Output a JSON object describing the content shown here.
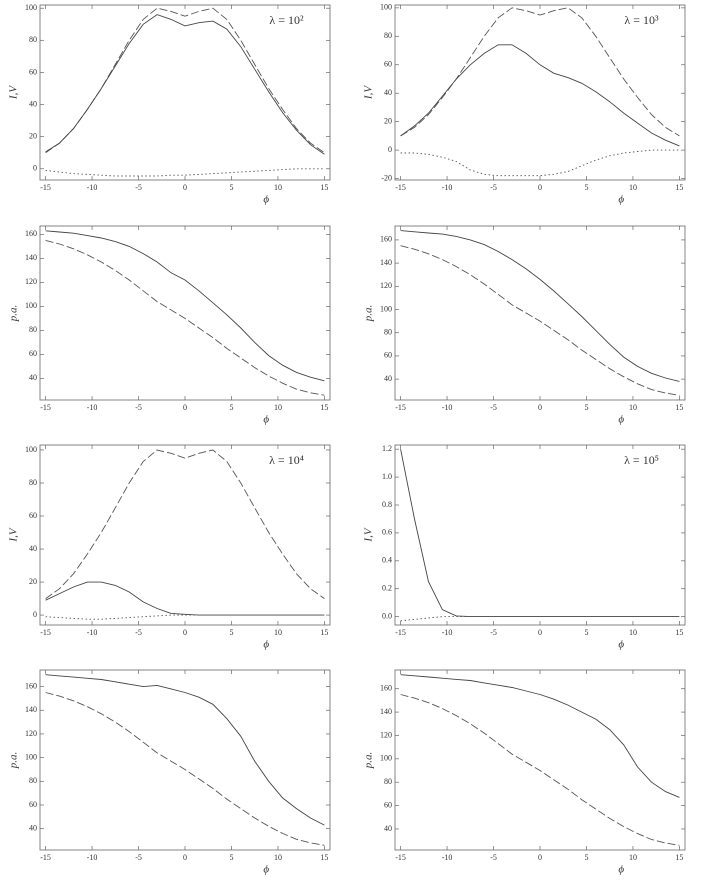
{
  "chart_data": [
    {
      "type": "line",
      "annotation": "λ = 10²",
      "xlabel": "ϕ",
      "ylabel": "I,V",
      "x": [
        -15,
        -13.5,
        -12,
        -10.5,
        -9,
        -7.5,
        -6,
        -4.5,
        -3,
        -1.5,
        0,
        1.5,
        3,
        4.5,
        6,
        7.5,
        9,
        10.5,
        12,
        13.5,
        15
      ],
      "xlim": [
        -15.6,
        15.6
      ],
      "xticks": [
        -15,
        -10,
        -5,
        0,
        5,
        10,
        15
      ],
      "ylim": [
        -7,
        102
      ],
      "yticks": [
        0,
        20,
        40,
        60,
        80,
        100
      ],
      "series": [
        {
          "style": "dashed",
          "color": "#555555",
          "values": [
            10,
            16,
            25,
            37,
            50,
            65,
            80,
            93,
            100,
            98,
            95,
            98,
            100,
            93,
            80,
            65,
            50,
            37,
            25,
            16,
            10
          ]
        },
        {
          "style": "solid",
          "color": "#444444",
          "values": [
            10.5,
            16,
            25,
            37,
            50,
            64,
            78,
            90,
            96,
            93,
            89,
            91,
            92,
            87,
            76,
            62,
            48,
            35,
            24,
            15,
            9
          ]
        },
        {
          "style": "dotted",
          "color": "#555555",
          "values": [
            -1,
            -2,
            -3,
            -3.5,
            -4,
            -4.5,
            -4.5,
            -4.5,
            -4.5,
            -4,
            -4,
            -3.5,
            -3,
            -2.5,
            -2,
            -1.5,
            -1,
            -0.5,
            0,
            0,
            0
          ]
        }
      ]
    },
    {
      "type": "line",
      "annotation": "λ = 10³",
      "xlabel": "ϕ",
      "ylabel": "I,V",
      "x": [
        -15,
        -13.5,
        -12,
        -10.5,
        -9,
        -7.5,
        -6,
        -4.5,
        -3,
        -1.5,
        0,
        1.5,
        3,
        4.5,
        6,
        7.5,
        9,
        10.5,
        12,
        13.5,
        15
      ],
      "xlim": [
        -15.6,
        15.6
      ],
      "xticks": [
        -15,
        -10,
        -5,
        0,
        5,
        10,
        15
      ],
      "ylim": [
        -21,
        102
      ],
      "yticks": [
        -20,
        0,
        20,
        40,
        60,
        80,
        100
      ],
      "series": [
        {
          "style": "dashed",
          "color": "#555555",
          "values": [
            10,
            16,
            25,
            37,
            50,
            65,
            80,
            93,
            100,
            98,
            95,
            98,
            100,
            93,
            80,
            65,
            50,
            37,
            25,
            16,
            10
          ]
        },
        {
          "style": "solid",
          "color": "#444444",
          "values": [
            10,
            17,
            26,
            38,
            50,
            60,
            68,
            74,
            74,
            68,
            60,
            54,
            51,
            47,
            41,
            34,
            26,
            19,
            12,
            7,
            3
          ]
        },
        {
          "style": "dotted",
          "color": "#555555",
          "values": [
            -2,
            -2,
            -3,
            -5,
            -8,
            -14,
            -17,
            -18,
            -18,
            -18,
            -18,
            -17,
            -15,
            -11,
            -7,
            -4,
            -2,
            -1,
            0,
            0,
            0
          ]
        }
      ]
    },
    {
      "type": "line",
      "xlabel": "ϕ",
      "ylabel": "p.a.",
      "x": [
        -15,
        -13.5,
        -12,
        -10.5,
        -9,
        -7.5,
        -6,
        -4.5,
        -3,
        -1.5,
        0,
        1.5,
        3,
        4.5,
        6,
        7.5,
        9,
        10.5,
        12,
        13.5,
        15
      ],
      "xlim": [
        -15.6,
        15.6
      ],
      "xticks": [
        -15,
        -10,
        -5,
        0,
        5,
        10,
        15
      ],
      "ylim": [
        22,
        167
      ],
      "yticks": [
        40,
        60,
        80,
        100,
        120,
        140,
        160
      ],
      "series": [
        {
          "style": "dashed",
          "color": "#555555",
          "values": [
            155,
            152,
            148,
            143,
            137,
            130,
            122,
            113,
            104,
            97,
            90,
            82,
            74,
            65,
            57,
            49,
            42,
            36,
            31,
            28,
            26
          ]
        },
        {
          "style": "solid",
          "color": "#444444",
          "values": [
            163,
            162,
            161,
            159,
            157,
            154,
            150,
            144,
            137,
            128,
            122,
            113,
            103,
            93,
            82,
            70,
            59,
            51,
            45,
            41,
            38
          ]
        }
      ]
    },
    {
      "type": "line",
      "xlabel": "ϕ",
      "ylabel": "p.a.",
      "x": [
        -15,
        -13.5,
        -12,
        -10.5,
        -9,
        -7.5,
        -6,
        -4.5,
        -3,
        -1.5,
        0,
        1.5,
        3,
        4.5,
        6,
        7.5,
        9,
        10.5,
        12,
        13.5,
        15
      ],
      "xlim": [
        -15.6,
        15.6
      ],
      "xticks": [
        -15,
        -10,
        -5,
        0,
        5,
        10,
        15
      ],
      "ylim": [
        22,
        172
      ],
      "yticks": [
        40,
        60,
        80,
        100,
        120,
        140,
        160
      ],
      "series": [
        {
          "style": "dashed",
          "color": "#555555",
          "values": [
            155,
            152,
            148,
            143,
            137,
            130,
            122,
            113,
            104,
            97,
            90,
            82,
            74,
            65,
            57,
            49,
            42,
            36,
            31,
            28,
            26
          ]
        },
        {
          "style": "solid",
          "color": "#444444",
          "values": [
            168,
            167,
            166,
            165,
            163,
            160,
            156,
            150,
            143,
            135,
            126,
            116,
            105,
            94,
            82,
            70,
            59,
            51,
            45,
            41,
            38
          ]
        }
      ]
    },
    {
      "type": "line",
      "annotation": "λ = 10⁴",
      "xlabel": "ϕ",
      "ylabel": "I,V",
      "x": [
        -15,
        -13.5,
        -12,
        -10.5,
        -9,
        -7.5,
        -6,
        -4.5,
        -3,
        -1.5,
        0,
        1.5,
        3,
        4.5,
        6,
        7.5,
        9,
        10.5,
        12,
        13.5,
        15
      ],
      "xlim": [
        -15.6,
        15.6
      ],
      "xticks": [
        -15,
        -10,
        -5,
        0,
        5,
        10,
        15
      ],
      "ylim": [
        -6,
        103
      ],
      "yticks": [
        0,
        20,
        40,
        60,
        80,
        100
      ],
      "series": [
        {
          "style": "dashed",
          "color": "#555555",
          "values": [
            10,
            16,
            25,
            37,
            50,
            65,
            80,
            93,
            100,
            98,
            95,
            98,
            100,
            93,
            80,
            65,
            50,
            37,
            25,
            16,
            10
          ]
        },
        {
          "style": "solid",
          "color": "#444444",
          "values": [
            9,
            13,
            17,
            20,
            20,
            18,
            14,
            8,
            4,
            1,
            0.5,
            0,
            0,
            0,
            0,
            0,
            0,
            0,
            0,
            0,
            0
          ]
        },
        {
          "style": "dotted",
          "color": "#555555",
          "values": [
            -1,
            -1.5,
            -2,
            -2.5,
            -2.5,
            -2,
            -1.5,
            -1,
            -0.5,
            0,
            0,
            0,
            0,
            0,
            0,
            0,
            0,
            0,
            0,
            0,
            0
          ]
        }
      ]
    },
    {
      "type": "line",
      "annotation": "λ = 10⁵",
      "xlabel": "ϕ",
      "ylabel": "I,V",
      "x": [
        -15,
        -13.5,
        -12,
        -10.5,
        -9,
        -7.5,
        -6,
        -4.5,
        -3,
        -1.5,
        0,
        1.5,
        3,
        4.5,
        6,
        7.5,
        9,
        10.5,
        12,
        13.5,
        15
      ],
      "xlim": [
        -15.6,
        15.6
      ],
      "xticks": [
        -15,
        -10,
        -5,
        0,
        5,
        10,
        15
      ],
      "ylim": [
        -0.06,
        1.23
      ],
      "yticks": [
        {
          "value": 0,
          "label": "0.0"
        },
        0.2,
        0.4,
        0.6,
        0.8,
        {
          "value": 1,
          "label": "1.0"
        },
        1.2
      ],
      "series": [
        {
          "style": "solid",
          "color": "#444444",
          "values": [
            1.2,
            0.7,
            0.25,
            0.05,
            0.005,
            0,
            0,
            0,
            0,
            0,
            0,
            0,
            0,
            0,
            0,
            0,
            0,
            0,
            0,
            0,
            0
          ]
        },
        {
          "style": "dotted",
          "color": "#555555",
          "values": [
            -0.03,
            -0.02,
            -0.01,
            0,
            0,
            0,
            0,
            0,
            0,
            0,
            0,
            0,
            0,
            0,
            0,
            0,
            0,
            0,
            0,
            0,
            0
          ]
        }
      ]
    },
    {
      "type": "line",
      "xlabel": "ϕ",
      "ylabel": "p.a.",
      "x": [
        -15,
        -13.5,
        -12,
        -10.5,
        -9,
        -7.5,
        -6,
        -4.5,
        -3,
        -1.5,
        0,
        1.5,
        3,
        4.5,
        6,
        7.5,
        9,
        10.5,
        12,
        13.5,
        15
      ],
      "xlim": [
        -15.6,
        15.6
      ],
      "xticks": [
        -15,
        -10,
        -5,
        0,
        5,
        10,
        15
      ],
      "ylim": [
        22,
        174
      ],
      "yticks": [
        40,
        60,
        80,
        100,
        120,
        140,
        160
      ],
      "series": [
        {
          "style": "dashed",
          "color": "#555555",
          "values": [
            155,
            152,
            148,
            143,
            137,
            130,
            122,
            113,
            104,
            97,
            90,
            82,
            74,
            65,
            57,
            49,
            42,
            36,
            31,
            28,
            26
          ]
        },
        {
          "style": "solid",
          "color": "#444444",
          "values": [
            170,
            169,
            168,
            167,
            166,
            164,
            162,
            160,
            161,
            158,
            155,
            151,
            145,
            133,
            118,
            97,
            80,
            66,
            57,
            49,
            43
          ]
        }
      ]
    },
    {
      "type": "line",
      "xlabel": "ϕ",
      "ylabel": "p.a.",
      "x": [
        -15,
        -13.5,
        -12,
        -10.5,
        -9,
        -7.5,
        -6,
        -4.5,
        -3,
        -1.5,
        0,
        1.5,
        3,
        4.5,
        6,
        7.5,
        9,
        10.5,
        12,
        13.5,
        15
      ],
      "xlim": [
        -15.6,
        15.6
      ],
      "xticks": [
        -15,
        -10,
        -5,
        0,
        5,
        10,
        15
      ],
      "ylim": [
        22,
        176
      ],
      "yticks": [
        40,
        60,
        80,
        100,
        120,
        140,
        160
      ],
      "series": [
        {
          "style": "dashed",
          "color": "#555555",
          "values": [
            155,
            152,
            148,
            143,
            137,
            130,
            122,
            113,
            104,
            97,
            90,
            82,
            74,
            65,
            57,
            49,
            42,
            36,
            31,
            28,
            26
          ]
        },
        {
          "style": "solid",
          "color": "#444444",
          "values": [
            172,
            171,
            170,
            169,
            168,
            167,
            165,
            163,
            161,
            158,
            155,
            151,
            146,
            140,
            134,
            125,
            112,
            93,
            80,
            72,
            67
          ]
        }
      ]
    }
  ]
}
